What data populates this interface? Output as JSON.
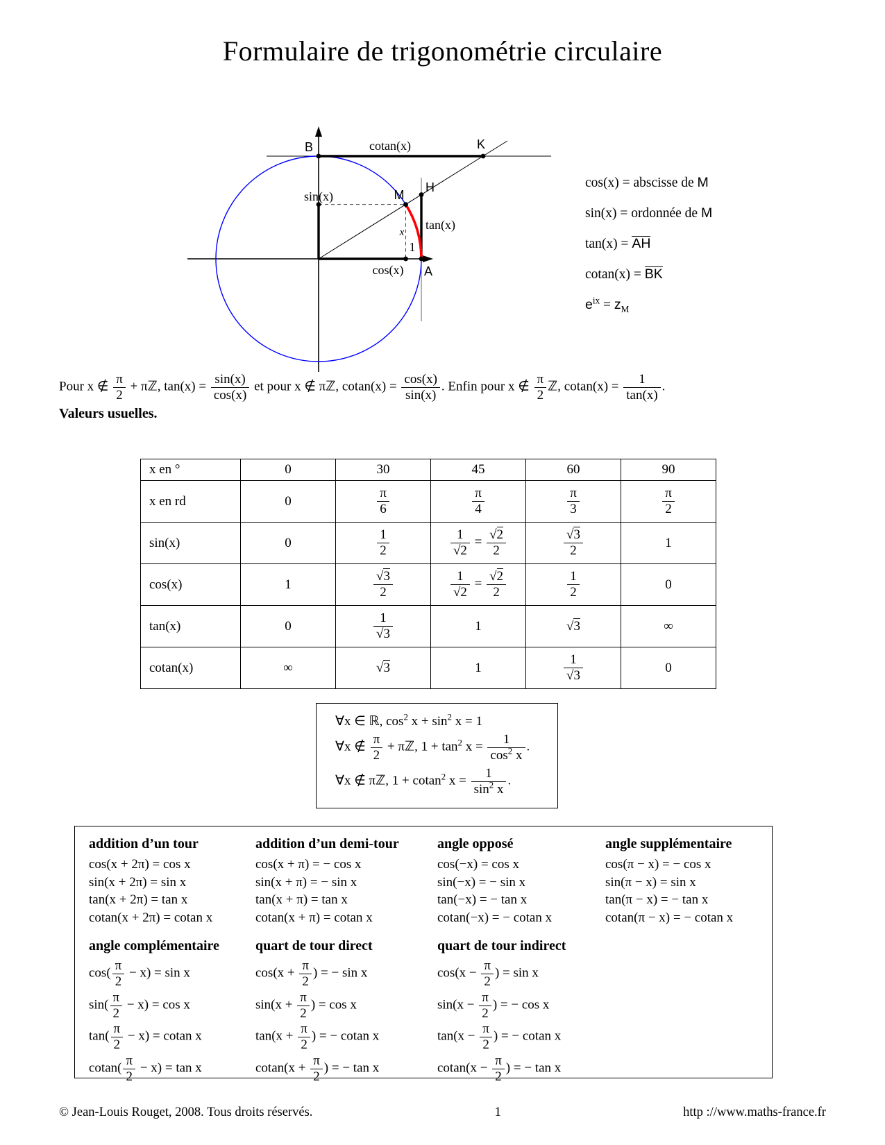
{
  "title": "Formulaire de trigonométrie circulaire",
  "diagram": {
    "colors": {
      "circle": "#0000ff",
      "arc": "#ff0000"
    },
    "point_labels": {
      "B": "B",
      "K": "K",
      "M": "M",
      "H": "H",
      "A": "A"
    },
    "measure_labels": {
      "cotan": "cotan(x)",
      "sin": "sin(x)",
      "tan": "tan(x)",
      "cos": "cos(x)",
      "one": "1",
      "angle": "x"
    }
  },
  "side_formulas": {
    "cos": [
      {
        "t": "cos(x) = abscisse de "
      },
      {
        "s": "M"
      }
    ],
    "sin": [
      {
        "t": "sin(x) = ordonnée de "
      },
      {
        "s": "M"
      }
    ],
    "tan": [
      {
        "t": "tan(x) = "
      },
      {
        "o": "AH"
      }
    ],
    "cotan": [
      {
        "t": "cotan(x) = "
      },
      {
        "o": "BK"
      }
    ],
    "exp": [
      {
        "s": "e"
      },
      {
        "sup": "ix"
      },
      {
        "t": " = "
      },
      {
        "s": "z"
      },
      {
        "sub": "M"
      }
    ]
  },
  "intro": {
    "tokens": [
      {
        "t": "Pour x ∉ "
      },
      {
        "f": [
          [
            {
              "t": "π"
            }
          ],
          [
            {
              "t": "2"
            }
          ]
        ]
      },
      {
        "t": " + πℤ, tan(x) = "
      },
      {
        "f": [
          [
            {
              "t": "sin(x)"
            }
          ],
          [
            {
              "t": "cos(x)"
            }
          ]
        ]
      },
      {
        "t": " et pour x ∉ πℤ, cotan(x) = "
      },
      {
        "f": [
          [
            {
              "t": "cos(x)"
            }
          ],
          [
            {
              "t": "sin(x)"
            }
          ]
        ]
      },
      {
        "t": ". Enfin pour x ∉ "
      },
      {
        "f": [
          [
            {
              "t": "π"
            }
          ],
          [
            {
              "t": "2"
            }
          ]
        ]
      },
      {
        "t": "ℤ, cotan(x) = "
      },
      {
        "f": [
          [
            {
              "t": "1"
            }
          ],
          [
            {
              "t": "tan(x)"
            }
          ]
        ]
      },
      {
        "t": "."
      }
    ]
  },
  "values_heading": "Valeurs usuelles.",
  "values_table": {
    "rows": [
      [
        [
          {
            "t": "x en °"
          }
        ],
        [
          {
            "t": "0"
          }
        ],
        [
          {
            "t": "30"
          }
        ],
        [
          {
            "t": "45"
          }
        ],
        [
          {
            "t": "60"
          }
        ],
        [
          {
            "t": "90"
          }
        ]
      ],
      [
        [
          {
            "t": "x en rd"
          }
        ],
        [
          {
            "t": "0"
          }
        ],
        [
          {
            "f": [
              [
                {
                  "t": "π"
                }
              ],
              [
                {
                  "t": "6"
                }
              ]
            ]
          }
        ],
        [
          {
            "f": [
              [
                {
                  "t": "π"
                }
              ],
              [
                {
                  "t": "4"
                }
              ]
            ]
          }
        ],
        [
          {
            "f": [
              [
                {
                  "t": "π"
                }
              ],
              [
                {
                  "t": "3"
                }
              ]
            ]
          }
        ],
        [
          {
            "f": [
              [
                {
                  "t": "π"
                }
              ],
              [
                {
                  "t": "2"
                }
              ]
            ]
          }
        ]
      ],
      [
        [
          {
            "t": "sin(x)"
          }
        ],
        [
          {
            "t": "0"
          }
        ],
        [
          {
            "f": [
              [
                {
                  "t": "1"
                }
              ],
              [
                {
                  "t": "2"
                }
              ]
            ]
          }
        ],
        [
          {
            "f": [
              [
                {
                  "t": "1"
                }
              ],
              [
                {
                  "r": "2"
                }
              ]
            ]
          },
          {
            "t": " = "
          },
          {
            "f": [
              [
                {
                  "r": "2"
                }
              ],
              [
                {
                  "t": "2"
                }
              ]
            ]
          }
        ],
        [
          {
            "f": [
              [
                {
                  "r": "3"
                }
              ],
              [
                {
                  "t": "2"
                }
              ]
            ]
          }
        ],
        [
          {
            "t": "1"
          }
        ]
      ],
      [
        [
          {
            "t": "cos(x)"
          }
        ],
        [
          {
            "t": "1"
          }
        ],
        [
          {
            "f": [
              [
                {
                  "r": "3"
                }
              ],
              [
                {
                  "t": "2"
                }
              ]
            ]
          }
        ],
        [
          {
            "f": [
              [
                {
                  "t": "1"
                }
              ],
              [
                {
                  "r": "2"
                }
              ]
            ]
          },
          {
            "t": " = "
          },
          {
            "f": [
              [
                {
                  "r": "2"
                }
              ],
              [
                {
                  "t": "2"
                }
              ]
            ]
          }
        ],
        [
          {
            "f": [
              [
                {
                  "t": "1"
                }
              ],
              [
                {
                  "t": "2"
                }
              ]
            ]
          }
        ],
        [
          {
            "t": "0"
          }
        ]
      ],
      [
        [
          {
            "t": "tan(x)"
          }
        ],
        [
          {
            "t": "0"
          }
        ],
        [
          {
            "f": [
              [
                {
                  "t": "1"
                }
              ],
              [
                {
                  "r": "3"
                }
              ]
            ]
          }
        ],
        [
          {
            "t": "1"
          }
        ],
        [
          {
            "r": "3"
          }
        ],
        [
          {
            "t": "∞"
          }
        ]
      ],
      [
        [
          {
            "t": "cotan(x)"
          }
        ],
        [
          {
            "t": "∞"
          }
        ],
        [
          {
            "r": "3"
          }
        ],
        [
          {
            "t": "1"
          }
        ],
        [
          {
            "f": [
              [
                {
                  "t": "1"
                }
              ],
              [
                {
                  "r": "3"
                }
              ]
            ]
          }
        ],
        [
          {
            "t": "0"
          }
        ]
      ]
    ]
  },
  "identity_box": {
    "lines": [
      [
        {
          "t": "∀x ∈ ℝ,  cos"
        },
        {
          "sup": "2"
        },
        {
          "t": " x + sin"
        },
        {
          "sup": "2"
        },
        {
          "t": " x = 1"
        }
      ],
      [
        {
          "t": "∀x ∉ "
        },
        {
          "f": [
            [
              {
                "t": "π"
              }
            ],
            [
              {
                "t": "2"
              }
            ]
          ]
        },
        {
          "t": " + πℤ, 1 + tan"
        },
        {
          "sup": "2"
        },
        {
          "t": " x = "
        },
        {
          "f": [
            [
              {
                "t": "1"
              }
            ],
            [
              {
                "t": "cos"
              },
              {
                "sup": "2"
              },
              {
                "t": " x"
              }
            ]
          ]
        },
        {
          "t": "."
        }
      ],
      [
        {
          "t": "∀x ∉ πℤ, 1 + cotan"
        },
        {
          "sup": "2"
        },
        {
          "t": " x = "
        },
        {
          "f": [
            [
              {
                "t": "1"
              }
            ],
            [
              {
                "t": "sin"
              },
              {
                "sup": "2"
              },
              {
                "t": " x"
              }
            ]
          ]
        },
        {
          "t": "."
        }
      ]
    ]
  },
  "formula_box": {
    "sections": [
      {
        "header": "addition d’un tour",
        "lines": [
          [
            {
              "t": "cos(x + 2π) = cos x"
            }
          ],
          [
            {
              "t": "sin(x + 2π) = sin x"
            }
          ],
          [
            {
              "t": "tan(x + 2π) = tan x"
            }
          ],
          [
            {
              "t": "cotan(x + 2π) = cotan x"
            }
          ]
        ]
      },
      {
        "header": "addition d’un demi-tour",
        "lines": [
          [
            {
              "t": "cos(x + π) = − cos x"
            }
          ],
          [
            {
              "t": "sin(x + π) = − sin x"
            }
          ],
          [
            {
              "t": "tan(x + π) = tan x"
            }
          ],
          [
            {
              "t": "cotan(x + π) = cotan x"
            }
          ]
        ]
      },
      {
        "header": "angle opposé",
        "lines": [
          [
            {
              "t": "cos(−x) = cos x"
            }
          ],
          [
            {
              "t": "sin(−x) = − sin x"
            }
          ],
          [
            {
              "t": "tan(−x) = − tan x"
            }
          ],
          [
            {
              "t": "cotan(−x) = − cotan x"
            }
          ]
        ]
      },
      {
        "header": "angle supplémentaire",
        "lines": [
          [
            {
              "t": "cos(π − x) = − cos x"
            }
          ],
          [
            {
              "t": "sin(π − x) = sin x"
            }
          ],
          [
            {
              "t": "tan(π − x) = − tan x"
            }
          ],
          [
            {
              "t": "cotan(π − x) = − cotan x"
            }
          ]
        ]
      },
      {
        "header": "angle complémentaire",
        "lines": [
          [
            {
              "t": "cos("
            },
            {
              "f": [
                [
                  {
                    "t": "π"
                  }
                ],
                [
                  {
                    "t": "2"
                  }
                ]
              ]
            },
            {
              "t": " − x) = sin x"
            }
          ],
          [
            {
              "t": "sin("
            },
            {
              "f": [
                [
                  {
                    "t": "π"
                  }
                ],
                [
                  {
                    "t": "2"
                  }
                ]
              ]
            },
            {
              "t": " − x) = cos x"
            }
          ],
          [
            {
              "t": "tan("
            },
            {
              "f": [
                [
                  {
                    "t": "π"
                  }
                ],
                [
                  {
                    "t": "2"
                  }
                ]
              ]
            },
            {
              "t": " − x) = cotan x"
            }
          ],
          [
            {
              "t": "cotan("
            },
            {
              "f": [
                [
                  {
                    "t": "π"
                  }
                ],
                [
                  {
                    "t": "2"
                  }
                ]
              ]
            },
            {
              "t": " − x) = tan x"
            }
          ]
        ]
      },
      {
        "header": "quart de tour direct",
        "lines": [
          [
            {
              "t": "cos(x + "
            },
            {
              "f": [
                [
                  {
                    "t": "π"
                  }
                ],
                [
                  {
                    "t": "2"
                  }
                ]
              ]
            },
            {
              "t": ") = − sin x"
            }
          ],
          [
            {
              "t": "sin(x + "
            },
            {
              "f": [
                [
                  {
                    "t": "π"
                  }
                ],
                [
                  {
                    "t": "2"
                  }
                ]
              ]
            },
            {
              "t": ") = cos x"
            }
          ],
          [
            {
              "t": "tan(x + "
            },
            {
              "f": [
                [
                  {
                    "t": "π"
                  }
                ],
                [
                  {
                    "t": "2"
                  }
                ]
              ]
            },
            {
              "t": ") = − cotan x"
            }
          ],
          [
            {
              "t": "cotan(x + "
            },
            {
              "f": [
                [
                  {
                    "t": "π"
                  }
                ],
                [
                  {
                    "t": "2"
                  }
                ]
              ]
            },
            {
              "t": ") = − tan x"
            }
          ]
        ]
      },
      {
        "header": "quart de tour indirect",
        "lines": [
          [
            {
              "t": "cos(x − "
            },
            {
              "f": [
                [
                  {
                    "t": "π"
                  }
                ],
                [
                  {
                    "t": "2"
                  }
                ]
              ]
            },
            {
              "t": ") = sin x"
            }
          ],
          [
            {
              "t": "sin(x − "
            },
            {
              "f": [
                [
                  {
                    "t": "π"
                  }
                ],
                [
                  {
                    "t": "2"
                  }
                ]
              ]
            },
            {
              "t": ") = − cos x"
            }
          ],
          [
            {
              "t": "tan(x − "
            },
            {
              "f": [
                [
                  {
                    "t": "π"
                  }
                ],
                [
                  {
                    "t": "2"
                  }
                ]
              ]
            },
            {
              "t": ") = − cotan x"
            }
          ],
          [
            {
              "t": "cotan(x − "
            },
            {
              "f": [
                [
                  {
                    "t": "π"
                  }
                ],
                [
                  {
                    "t": "2"
                  }
                ]
              ]
            },
            {
              "t": ") = − tan x"
            }
          ]
        ]
      }
    ]
  },
  "footer": {
    "left": "© Jean-Louis Rouget, 2008. Tous droits réservés.",
    "page": "1",
    "right": "http ://www.maths-france.fr"
  }
}
